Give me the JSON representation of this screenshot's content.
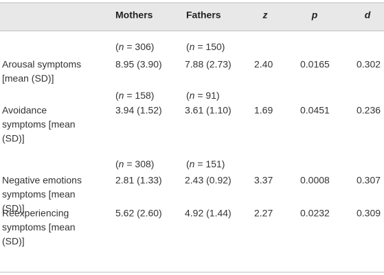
{
  "table": {
    "columns": [
      "Mothers",
      "Fathers",
      "z",
      "p",
      "d"
    ],
    "rows": [
      {
        "n": [
          "(n = 306)",
          "(n = 150)"
        ],
        "label": [
          "Arousal symptoms",
          "[mean (SD)]"
        ],
        "cells": [
          "8.95 (3.90)",
          "7.88 (2.73)",
          "2.40",
          "0.0165",
          "0.302"
        ]
      },
      {
        "n": [
          "(n = 158)",
          "(n = 91)"
        ],
        "label": [
          "Avoidance",
          "symptoms [mean",
          "(SD)]"
        ],
        "cells": [
          "3.94 (1.52)",
          "3.61 (1.10)",
          "1.69",
          "0.0451",
          "0.236"
        ]
      },
      {
        "n": [
          "(n = 308)",
          "(n = 151)"
        ],
        "label": [
          "Negative emotions",
          "symptoms [mean",
          "(SD)]"
        ],
        "cells": [
          "2.81 (1.33)",
          "2.43 (0.92)",
          "3.37",
          "0.0008",
          "0.307"
        ]
      },
      {
        "label": [
          "Reexperiencing",
          "symptoms [mean",
          "(SD)]"
        ],
        "cells": [
          "5.62 (2.60)",
          "4.92 (1.44)",
          "2.27",
          "0.0232",
          "0.309"
        ]
      }
    ]
  }
}
